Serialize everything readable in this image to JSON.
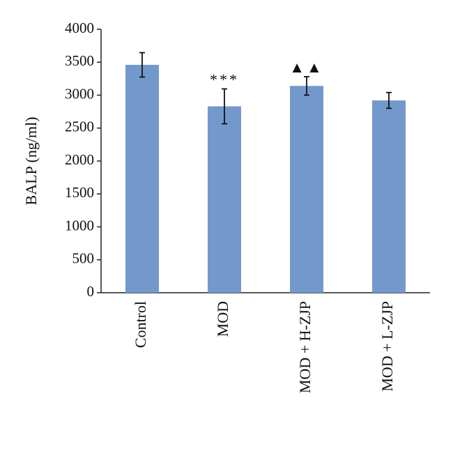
{
  "chart_data": {
    "type": "bar",
    "y_label": "BALP (ng/ml)",
    "categories": [
      "Control",
      "MOD",
      "MOD + H-ZJP",
      "MOD + L-ZJP"
    ],
    "values": [
      3460,
      2830,
      3140,
      2920
    ],
    "errors": [
      185,
      265,
      140,
      120
    ],
    "annotations": [
      null,
      "***",
      "▲▲",
      null
    ],
    "color": "#7399cc",
    "ylim": [
      0,
      4000
    ],
    "yticks": [
      0,
      500,
      1000,
      1500,
      2000,
      2500,
      3000,
      3500,
      4000
    ],
    "grid": false
  }
}
